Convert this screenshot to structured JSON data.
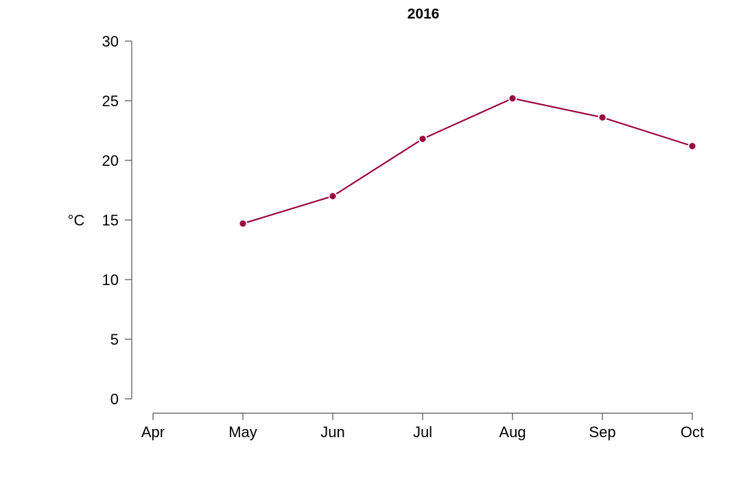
{
  "chart_data": {
    "type": "line",
    "title": "2016",
    "ylabel": "°C",
    "xlabel": "",
    "categories": [
      "Apr",
      "May",
      "Jun",
      "Jul",
      "Aug",
      "Sep",
      "Oct"
    ],
    "series": [
      {
        "x": [
          "May",
          "Jun",
          "Jul",
          "Aug",
          "Sep",
          "Oct"
        ],
        "values": [
          14.7,
          17.0,
          21.8,
          25.2,
          23.6,
          21.2
        ],
        "color": "#990040"
      }
    ],
    "ylim": [
      0,
      30
    ],
    "yticks": [
      0,
      5,
      10,
      15,
      20,
      25,
      30
    ],
    "grid": false,
    "legend": "none"
  }
}
